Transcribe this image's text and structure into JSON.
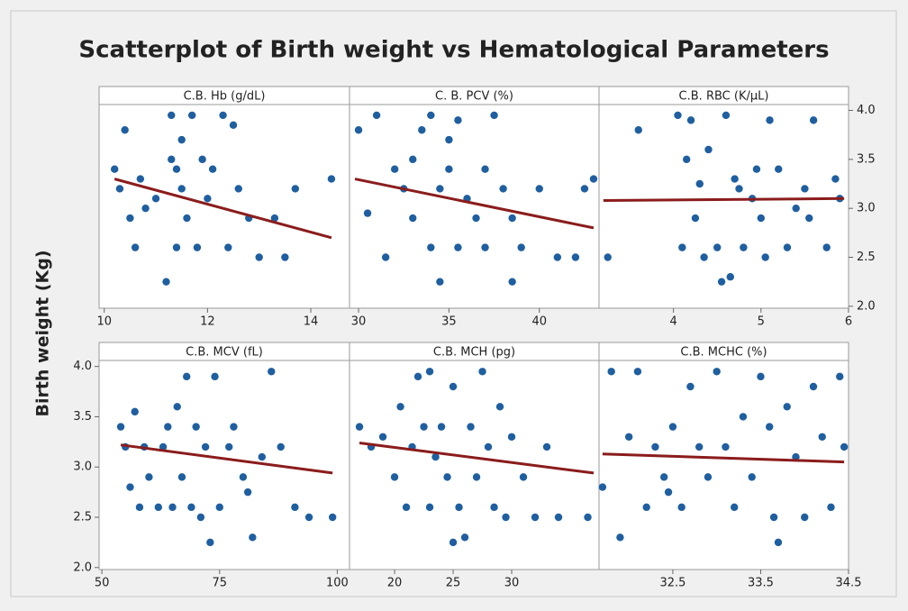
{
  "title": "Scatterplot of Birth weight vs Hematological Parameters",
  "y_label": "Birth weight (Kg)",
  "chart_data": [
    {
      "type": "scatter",
      "title": "C.B. Hb (g/dL)",
      "color": "#1f5fa0",
      "fit_color": "#8b1c1c",
      "x": [
        10.2,
        10.3,
        10.4,
        10.5,
        10.6,
        10.7,
        10.8,
        11.0,
        11.2,
        11.3,
        11.3,
        11.4,
        11.4,
        11.5,
        11.5,
        11.6,
        11.7,
        11.8,
        11.9,
        12.0,
        12.1,
        12.3,
        12.4,
        12.5,
        12.6,
        12.8,
        13.0,
        13.3,
        13.5,
        13.7,
        14.4
      ],
      "y": [
        3.4,
        3.2,
        3.8,
        2.9,
        2.6,
        3.3,
        3.0,
        3.1,
        2.25,
        3.95,
        3.5,
        3.4,
        2.6,
        3.2,
        3.7,
        2.9,
        3.95,
        2.6,
        3.5,
        3.1,
        3.4,
        3.95,
        2.6,
        3.85,
        3.2,
        2.9,
        2.5,
        2.9,
        2.5,
        3.2,
        3.3
      ],
      "fit": {
        "x": [
          10.2,
          14.4
        ],
        "y": [
          3.3,
          2.7
        ]
      },
      "xlim": [
        9.9,
        14.75
      ],
      "xticks": [
        10,
        12,
        14
      ],
      "ylim": [
        1.98,
        4.06
      ]
    },
    {
      "type": "scatter",
      "title": "C. B. PCV (%)",
      "color": "#1f5fa0",
      "fit_color": "#8b1c1c",
      "x": [
        30.0,
        30.5,
        31.0,
        31.5,
        32.0,
        32.5,
        33.0,
        33.5,
        34.0,
        34.0,
        34.5,
        34.5,
        35.0,
        35.0,
        35.5,
        35.5,
        36.0,
        36.5,
        37.0,
        37.0,
        37.5,
        38.0,
        38.5,
        38.5,
        39.0,
        40.0,
        41.0,
        42.0,
        42.5,
        43.0,
        33.0
      ],
      "y": [
        3.8,
        2.95,
        3.95,
        2.5,
        3.4,
        3.2,
        2.9,
        3.8,
        3.95,
        2.6,
        3.2,
        2.25,
        3.7,
        3.4,
        2.6,
        3.9,
        3.1,
        2.9,
        3.4,
        2.6,
        3.95,
        3.2,
        2.25,
        2.9,
        2.6,
        3.2,
        2.5,
        2.5,
        3.2,
        3.3,
        3.5
      ],
      "fit": {
        "x": [
          29.8,
          43.0
        ],
        "y": [
          3.3,
          2.8
        ]
      },
      "xlim": [
        29.5,
        43.3
      ],
      "xticks": [
        30,
        35,
        40
      ],
      "ylim": [
        1.98,
        4.06
      ]
    },
    {
      "type": "scatter",
      "title": "C.B. RBC  (K/µL)",
      "color": "#1f5fa0",
      "fit_color": "#8b1c1c",
      "x": [
        3.25,
        3.6,
        4.05,
        4.1,
        4.15,
        4.2,
        4.25,
        4.3,
        4.35,
        4.4,
        4.5,
        4.55,
        4.6,
        4.65,
        4.7,
        4.75,
        4.8,
        4.9,
        4.95,
        5.0,
        5.05,
        5.1,
        5.2,
        5.3,
        5.4,
        5.5,
        5.55,
        5.6,
        5.75,
        5.85,
        5.9
      ],
      "y": [
        2.5,
        3.8,
        3.95,
        2.6,
        3.5,
        3.9,
        2.9,
        3.25,
        2.5,
        3.6,
        2.6,
        2.25,
        3.95,
        2.3,
        3.3,
        3.2,
        2.6,
        3.1,
        3.4,
        2.9,
        2.5,
        3.9,
        3.4,
        2.6,
        3.0,
        3.2,
        2.9,
        3.9,
        2.6,
        3.3,
        3.1
      ],
      "fit": {
        "x": [
          3.2,
          5.95
        ],
        "y": [
          3.08,
          3.1
        ]
      },
      "xlim": [
        3.15,
        6.0
      ],
      "xticks": [
        4,
        5,
        6
      ],
      "ylim": [
        1.98,
        4.06
      ],
      "yticks": [
        {
          "value": 2,
          "label": "2.0"
        },
        2.5,
        {
          "value": 3,
          "label": "3.0"
        },
        3.5,
        {
          "value": 4,
          "label": "4.0"
        }
      ],
      "ytick_side": "right"
    },
    {
      "type": "scatter",
      "title": "C.B. MCV (fL)",
      "color": "#1f5fa0",
      "fit_color": "#8b1c1c",
      "x": [
        54,
        55,
        56,
        57,
        58,
        59,
        60,
        62,
        63,
        64,
        65,
        66,
        67,
        68,
        69,
        70,
        71,
        72,
        73,
        74,
        75,
        77,
        78,
        80,
        81,
        82,
        84,
        86,
        88,
        91,
        94,
        99
      ],
      "y": [
        3.4,
        3.2,
        2.8,
        3.55,
        2.6,
        3.2,
        2.9,
        2.6,
        3.2,
        3.4,
        2.6,
        3.6,
        2.9,
        3.9,
        2.6,
        3.4,
        2.5,
        3.2,
        2.25,
        3.9,
        2.6,
        3.2,
        3.4,
        2.9,
        2.75,
        2.3,
        3.1,
        3.95,
        3.2,
        2.6,
        2.5,
        2.5
      ],
      "fit": {
        "x": [
          54,
          99
        ],
        "y": [
          3.22,
          2.94
        ]
      },
      "xlim": [
        49.4,
        102.6
      ],
      "xticks": [
        50,
        75,
        100
      ],
      "ylim": [
        1.98,
        4.06
      ],
      "yticks": [
        {
          "value": 2,
          "label": "2.0"
        },
        2.5,
        {
          "value": 3,
          "label": "3.0"
        },
        3.5,
        {
          "value": 4,
          "label": "4.0"
        }
      ],
      "ytick_side": "left"
    },
    {
      "type": "scatter",
      "title": "C.B. MCH (pg)",
      "color": "#1f5fa0",
      "fit_color": "#8b1c1c",
      "x": [
        17,
        18,
        19,
        20,
        20.5,
        21,
        21.5,
        22,
        22.5,
        23,
        23,
        23.5,
        24,
        24.5,
        25,
        25,
        25.5,
        26,
        26.5,
        27,
        27.5,
        28,
        28.5,
        29,
        29.5,
        30,
        31,
        32,
        33,
        34,
        36.5
      ],
      "y": [
        3.4,
        3.2,
        3.3,
        2.9,
        3.6,
        2.6,
        3.2,
        3.9,
        3.4,
        2.6,
        3.95,
        3.1,
        3.4,
        2.9,
        2.25,
        3.8,
        2.6,
        2.3,
        3.4,
        2.9,
        3.95,
        3.2,
        2.6,
        3.6,
        2.5,
        3.3,
        2.9,
        2.5,
        3.2,
        2.5,
        2.5
      ],
      "fit": {
        "x": [
          17,
          37
        ],
        "y": [
          3.24,
          2.94
        ]
      },
      "xlim": [
        16.15,
        37.46
      ],
      "xticks": [
        20,
        25,
        30
      ],
      "ylim": [
        1.98,
        4.06
      ]
    },
    {
      "type": "scatter",
      "title": "C.B. MCHC (%)",
      "color": "#1f5fa0",
      "fit_color": "#8b1c1c",
      "x": [
        31.7,
        31.8,
        31.9,
        32.0,
        32.1,
        32.2,
        32.3,
        32.4,
        32.5,
        32.6,
        32.7,
        32.8,
        32.9,
        33.0,
        33.1,
        33.2,
        33.3,
        33.4,
        33.5,
        33.6,
        33.7,
        33.8,
        33.9,
        34.0,
        34.1,
        34.2,
        34.3,
        34.4,
        34.45,
        33.65,
        32.45
      ],
      "y": [
        2.8,
        3.95,
        2.3,
        3.3,
        3.95,
        2.6,
        3.2,
        2.9,
        3.4,
        2.6,
        3.8,
        3.2,
        2.9,
        3.95,
        3.2,
        2.6,
        3.5,
        2.9,
        3.9,
        3.4,
        2.25,
        3.6,
        3.1,
        2.5,
        3.8,
        3.3,
        2.6,
        3.9,
        3.2,
        2.5,
        2.75
      ],
      "fit": {
        "x": [
          31.7,
          34.45
        ],
        "y": [
          3.13,
          3.05
        ]
      },
      "xlim": [
        31.66,
        34.5
      ],
      "xticks": [
        32.5,
        33.5,
        34.5
      ],
      "ylim": [
        1.98,
        4.06
      ]
    }
  ]
}
